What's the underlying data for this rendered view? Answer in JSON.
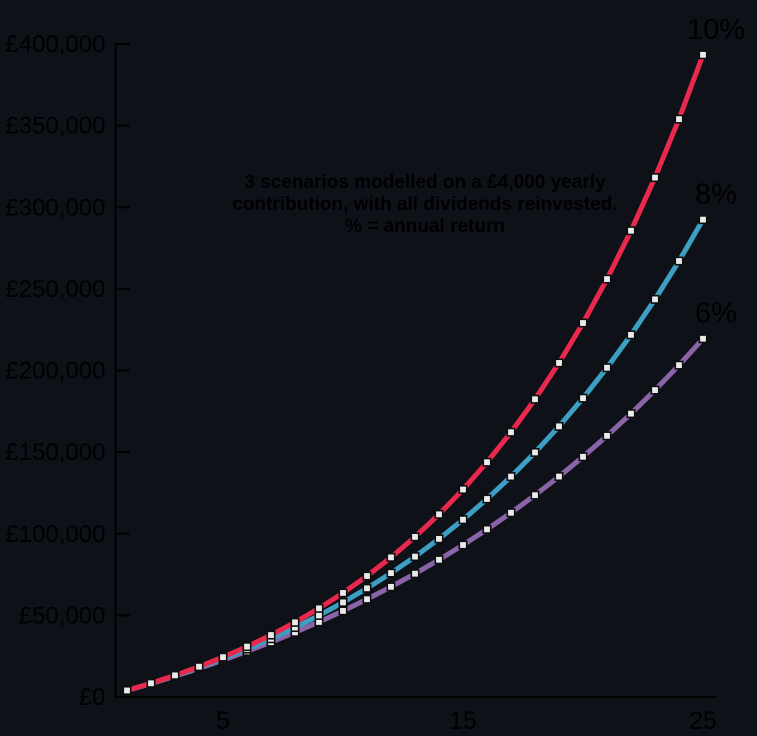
{
  "chart_data": {
    "type": "line",
    "title": "",
    "xlabel": "",
    "ylabel": "",
    "annotation_lines": [
      "3 scenarios modelled on a £4,000 yearly",
      "contribution, with all dividends reinvested.",
      "% = annual return"
    ],
    "x": [
      1,
      2,
      3,
      4,
      5,
      6,
      7,
      8,
      9,
      10,
      11,
      12,
      13,
      14,
      15,
      16,
      17,
      18,
      19,
      20,
      21,
      22,
      23,
      24,
      25
    ],
    "xlim": [
      1,
      25
    ],
    "ylim": [
      0,
      400000
    ],
    "x_ticks": [
      {
        "value": 5,
        "label": "5"
      },
      {
        "value": 15,
        "label": "15"
      },
      {
        "value": 25,
        "label": "25"
      }
    ],
    "y_ticks": [
      {
        "value": 0,
        "label": "£0"
      },
      {
        "value": 50000,
        "label": "£50,000"
      },
      {
        "value": 100000,
        "label": "£100,000"
      },
      {
        "value": 150000,
        "label": "£150,000"
      },
      {
        "value": 200000,
        "label": "£200,000"
      },
      {
        "value": 250000,
        "label": "£250,000"
      },
      {
        "value": 300000,
        "label": "£300,000"
      },
      {
        "value": 350000,
        "label": "£350,000"
      },
      {
        "value": 400000,
        "label": "£400,000"
      }
    ],
    "series": [
      {
        "name": "10%",
        "color": "#e8294d",
        "values": [
          4000,
          8400,
          13240,
          18564,
          24420,
          30862,
          37949,
          45744,
          54318,
          63750,
          74125,
          85537,
          98091,
          111900,
          127090,
          143799,
          162179,
          182397,
          204636,
          229100,
          256010,
          285611,
          318172,
          353989,
          393388
        ]
      },
      {
        "name": "8%",
        "color": "#3d9fc3",
        "values": [
          4000,
          8320,
          12986,
          18024,
          23466,
          29344,
          35691,
          42547,
          49950,
          57946,
          66582,
          75909,
          85981,
          96860,
          108608,
          121297,
          135001,
          149801,
          165785,
          183048,
          201692,
          221827,
          243573,
          267059,
          292424
        ]
      },
      {
        "name": "6%",
        "color": "#8a63a8",
        "values": [
          4000,
          8240,
          12734,
          17498,
          22548,
          27901,
          33575,
          39590,
          45965,
          52723,
          59887,
          67480,
          75529,
          84060,
          93104,
          102690,
          112852,
          123623,
          135040,
          147142,
          159971,
          173569,
          187983,
          203262,
          219458
        ]
      }
    ],
    "marker": {
      "shape": "square",
      "fill": "#ebebeb",
      "stroke": "#0d0d0d"
    },
    "grid": false,
    "legend_position": "line-end-labels"
  },
  "colors": {
    "background": "#0e1117",
    "axis": "#000000",
    "label_text": "#000000"
  }
}
